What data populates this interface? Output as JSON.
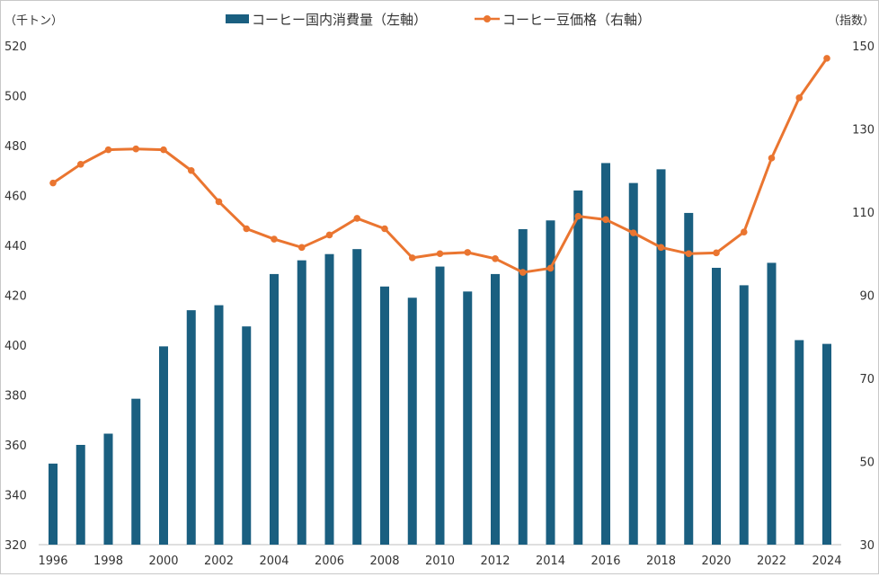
{
  "chart_data": {
    "type": "bar",
    "left_unit_label": "（千トン）",
    "right_unit_label": "（指数）",
    "x": [
      1996,
      1997,
      1998,
      1999,
      2000,
      2001,
      2002,
      2003,
      2004,
      2005,
      2006,
      2007,
      2008,
      2009,
      2010,
      2011,
      2012,
      2013,
      2014,
      2015,
      2016,
      2017,
      2018,
      2019,
      2020,
      2021,
      2022,
      2023,
      2024
    ],
    "x_tick_labels": [
      "1996",
      "1998",
      "2000",
      "2002",
      "2004",
      "2006",
      "2008",
      "2010",
      "2012",
      "2014",
      "2016",
      "2018",
      "2020",
      "2022",
      "2024"
    ],
    "left_axis": {
      "ylim": [
        320,
        520
      ],
      "ticks": [
        320,
        340,
        360,
        380,
        400,
        420,
        440,
        460,
        480,
        500,
        520
      ]
    },
    "right_axis": {
      "ylim": [
        30,
        150
      ],
      "ticks": [
        30,
        50,
        70,
        90,
        110,
        130,
        150
      ]
    },
    "series": [
      {
        "name": "コーヒー国内消費量（左軸）",
        "type": "bar",
        "axis": "left",
        "color": "#1a5f80",
        "values": [
          352.5,
          360,
          364.5,
          378.5,
          399.5,
          414,
          416,
          407.5,
          428.5,
          434,
          436.5,
          438.5,
          423.5,
          419,
          431.5,
          421.5,
          428.5,
          446.5,
          450,
          462,
          473,
          465,
          470.5,
          453,
          431,
          424,
          433,
          402,
          400.5
        ]
      },
      {
        "name": "コーヒー豆価格（右軸）",
        "type": "line",
        "axis": "right",
        "color": "#ea7530",
        "values": [
          117,
          121.5,
          125,
          125.2,
          125,
          120,
          112.5,
          106,
          103.5,
          101.5,
          104.5,
          108.5,
          106,
          99,
          100,
          100.3,
          98.8,
          95.5,
          96.5,
          109,
          108.2,
          105,
          101.5,
          100,
          100.2,
          105.2,
          123,
          137.5,
          147
        ]
      }
    ]
  }
}
